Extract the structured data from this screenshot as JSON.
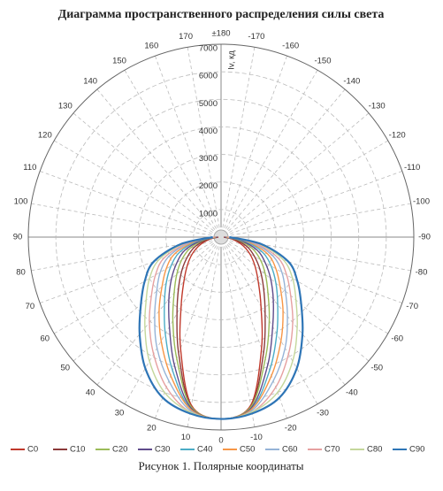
{
  "chart_data": {
    "type": "polar",
    "title": "Диаграмма пространственного распределения силы света",
    "caption": "Рисунок 1. Полярные координаты",
    "r_label": "Iv, кд",
    "rlim": [
      0,
      7000
    ],
    "rticks": [
      1000,
      2000,
      3000,
      4000,
      5000,
      6000,
      7000
    ],
    "thetaticks": [
      0,
      10,
      20,
      30,
      40,
      50,
      60,
      70,
      80,
      90,
      100,
      110,
      120,
      130,
      140,
      150,
      160,
      170,
      {
        "value": 180,
        "label": "±180"
      },
      -170,
      -160,
      -150,
      -140,
      -130,
      -120,
      -110,
      -100,
      -90,
      -80,
      -70,
      -60,
      -50,
      -40,
      -30,
      -20,
      -10
    ],
    "grid": true,
    "angles": [
      -90,
      -80,
      -70,
      -60,
      -50,
      -40,
      -30,
      -20,
      -10,
      0,
      10,
      20,
      30,
      40,
      50,
      60,
      70,
      80,
      90
    ],
    "series": [
      {
        "name": "C0",
        "color": "#c0392b",
        "values": [
          100,
          400,
          800,
          1200,
          1600,
          2100,
          2900,
          4300,
          6200,
          6600,
          6200,
          4300,
          2900,
          2100,
          1600,
          1200,
          800,
          400,
          100
        ]
      },
      {
        "name": "C10",
        "color": "#8b3a3a",
        "values": [
          100,
          500,
          1000,
          1400,
          1850,
          2400,
          3200,
          4500,
          6250,
          6600,
          6250,
          4500,
          3200,
          2400,
          1850,
          1400,
          1000,
          500,
          100
        ]
      },
      {
        "name": "C20",
        "color": "#9bbb59",
        "values": [
          150,
          650,
          1200,
          1650,
          2100,
          2650,
          3500,
          4700,
          6250,
          6600,
          6250,
          4700,
          3500,
          2650,
          2100,
          1650,
          1200,
          650,
          150
        ]
      },
      {
        "name": "C30",
        "color": "#5f4b8b",
        "values": [
          150,
          750,
          1400,
          1850,
          2350,
          2950,
          3750,
          4950,
          6300,
          6600,
          6300,
          4950,
          3750,
          2950,
          2350,
          1850,
          1400,
          750,
          150
        ]
      },
      {
        "name": "C40",
        "color": "#4bacc6",
        "values": [
          200,
          900,
          1600,
          2100,
          2600,
          3200,
          4050,
          5150,
          6350,
          6600,
          6350,
          5150,
          4050,
          3200,
          2600,
          2100,
          1600,
          900,
          200
        ]
      },
      {
        "name": "C50",
        "color": "#f79646",
        "values": [
          200,
          1000,
          1800,
          2300,
          2800,
          3500,
          4350,
          5350,
          6350,
          6600,
          6350,
          5350,
          4350,
          3500,
          2800,
          2300,
          1800,
          1000,
          200
        ]
      },
      {
        "name": "C60",
        "color": "#95b3d7",
        "values": [
          250,
          1150,
          2000,
          2550,
          3050,
          3750,
          4650,
          5550,
          6400,
          6600,
          6400,
          5550,
          4650,
          3750,
          3050,
          2550,
          2000,
          1150,
          250
        ]
      },
      {
        "name": "C70",
        "color": "#e6a0a0",
        "values": [
          250,
          1250,
          2200,
          2750,
          3300,
          4050,
          4900,
          5800,
          6450,
          6600,
          6450,
          5800,
          4900,
          4050,
          3300,
          2750,
          2200,
          1250,
          250
        ]
      },
      {
        "name": "C80",
        "color": "#c4d79b",
        "values": [
          300,
          1400,
          2400,
          3000,
          3550,
          4300,
          5200,
          6000,
          6450,
          6600,
          6450,
          6000,
          5200,
          4300,
          3550,
          3000,
          2400,
          1400,
          300
        ]
      },
      {
        "name": "C90",
        "color": "#2e75b6",
        "values": [
          300,
          1500,
          2600,
          3200,
          3800,
          4600,
          5500,
          6200,
          6500,
          6600,
          6500,
          6200,
          5500,
          4600,
          3800,
          3200,
          2600,
          1500,
          300
        ]
      }
    ]
  }
}
